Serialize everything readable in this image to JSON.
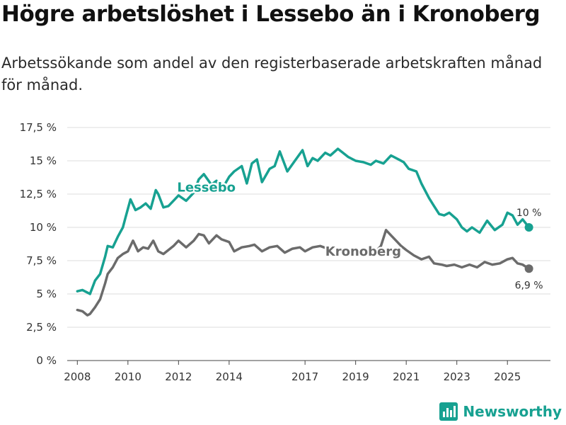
{
  "chart_data": {
    "type": "line",
    "title": "Högre arbetslöshet i Lessebo än i Kronoberg",
    "subtitle": "Arbetssökande som andel av den registerbaserade arbetskraften månad för månad.",
    "xlabel": "",
    "ylabel": "",
    "ylim": [
      0,
      17.5
    ],
    "xlim": [
      2007.6,
      2026.7
    ],
    "yticks": [
      0,
      2.5,
      5,
      7.5,
      10,
      12.5,
      15,
      17.5
    ],
    "ytick_labels": [
      "0 %",
      "2,5 %",
      "5 %",
      "7,5 %",
      "10 %",
      "12,5 %",
      "15 %",
      "17,5 %"
    ],
    "xticks": [
      2008,
      2010,
      2012,
      2014,
      2017,
      2019,
      2021,
      2023,
      2025
    ],
    "xtick_labels": [
      "2008",
      "2010",
      "2012",
      "2014",
      "2017",
      "2019",
      "2021",
      "2023",
      "2025"
    ],
    "grid": true,
    "series": [
      {
        "name": "Lessebo",
        "color": "#17a191",
        "end_label": "10 %",
        "x": [
          2008.0,
          2008.2,
          2008.4,
          2008.5,
          2008.7,
          2008.9,
          2009.1,
          2009.2,
          2009.4,
          2009.6,
          2009.8,
          2009.9,
          2010.1,
          2010.3,
          2010.5,
          2010.7,
          2010.9,
          2011.1,
          2011.2,
          2011.4,
          2011.6,
          2011.8,
          2012.0,
          2012.3,
          2012.6,
          2012.8,
          2013.0,
          2013.3,
          2013.5,
          2013.7,
          2014.0,
          2014.2,
          2014.5,
          2014.7,
          2014.9,
          2015.1,
          2015.3,
          2015.6,
          2015.8,
          2016.0,
          2016.3,
          2016.6,
          2016.9,
          2017.1,
          2017.3,
          2017.5,
          2017.8,
          2018.0,
          2018.3,
          2018.5,
          2018.7,
          2019.0,
          2019.3,
          2019.6,
          2019.8,
          2020.1,
          2020.4,
          2020.7,
          2020.9,
          2021.1,
          2021.4,
          2021.6,
          2021.9,
          2022.1,
          2022.3,
          2022.5,
          2022.7,
          2023.0,
          2023.2,
          2023.4,
          2023.6,
          2023.9,
          2024.2,
          2024.5,
          2024.8,
          2025.0,
          2025.2,
          2025.4,
          2025.6,
          2025.85
        ],
        "values": [
          5.2,
          5.3,
          5.1,
          5.0,
          6.0,
          6.5,
          7.8,
          8.6,
          8.5,
          9.3,
          10.0,
          10.7,
          12.1,
          11.3,
          11.5,
          11.8,
          11.4,
          12.8,
          12.5,
          11.5,
          11.6,
          12.0,
          12.4,
          12.0,
          12.6,
          13.6,
          14.0,
          13.2,
          13.5,
          12.8,
          13.8,
          14.2,
          14.6,
          13.3,
          14.8,
          15.1,
          13.4,
          14.4,
          14.6,
          15.7,
          14.2,
          15.0,
          15.8,
          14.6,
          15.2,
          15.0,
          15.6,
          15.4,
          15.9,
          15.6,
          15.3,
          15.0,
          14.9,
          14.7,
          15.0,
          14.8,
          15.4,
          15.1,
          14.9,
          14.4,
          14.2,
          13.3,
          12.2,
          11.6,
          11.0,
          10.9,
          11.1,
          10.6,
          10.0,
          9.7,
          10.0,
          9.6,
          10.5,
          9.8,
          10.2,
          11.1,
          10.9,
          10.2,
          10.6,
          10.0
        ]
      },
      {
        "name": "Kronoberg",
        "color": "#6b6b6b",
        "end_label": "6,9 %",
        "x": [
          2008.0,
          2008.2,
          2008.4,
          2008.5,
          2008.7,
          2008.9,
          2009.1,
          2009.2,
          2009.4,
          2009.6,
          2009.8,
          2010.0,
          2010.2,
          2010.4,
          2010.6,
          2010.8,
          2011.0,
          2011.2,
          2011.4,
          2011.6,
          2011.8,
          2012.0,
          2012.3,
          2012.6,
          2012.8,
          2013.0,
          2013.2,
          2013.5,
          2013.7,
          2014.0,
          2014.2,
          2014.5,
          2014.8,
          2015.0,
          2015.3,
          2015.6,
          2015.9,
          2016.2,
          2016.5,
          2016.8,
          2017.0,
          2017.3,
          2017.6,
          2017.9,
          2018.2,
          2018.5,
          2018.8,
          2019.1,
          2019.4,
          2019.7,
          2020.0,
          2020.2,
          2020.4,
          2020.6,
          2020.8,
          2021.0,
          2021.3,
          2021.6,
          2021.9,
          2022.1,
          2022.4,
          2022.6,
          2022.9,
          2023.2,
          2023.5,
          2023.8,
          2024.1,
          2024.4,
          2024.7,
          2025.0,
          2025.2,
          2025.4,
          2025.6,
          2025.85
        ],
        "values": [
          3.8,
          3.7,
          3.4,
          3.5,
          4.0,
          4.6,
          5.8,
          6.5,
          7.0,
          7.7,
          8.0,
          8.2,
          9.0,
          8.2,
          8.5,
          8.4,
          9.0,
          8.2,
          8.0,
          8.3,
          8.6,
          9.0,
          8.5,
          9.0,
          9.5,
          9.4,
          8.8,
          9.4,
          9.1,
          8.9,
          8.2,
          8.5,
          8.6,
          8.7,
          8.2,
          8.5,
          8.6,
          8.1,
          8.4,
          8.5,
          8.2,
          8.5,
          8.6,
          8.4,
          8.5,
          8.1,
          8.3,
          8.2,
          8.3,
          8.0,
          8.6,
          9.8,
          9.4,
          9.0,
          8.6,
          8.3,
          7.9,
          7.6,
          7.8,
          7.3,
          7.2,
          7.1,
          7.2,
          7.0,
          7.2,
          7.0,
          7.4,
          7.2,
          7.3,
          7.6,
          7.7,
          7.3,
          7.2,
          6.9
        ]
      }
    ]
  },
  "brand": {
    "name": "Newsworthy",
    "icon": "bar-chart-logo-icon",
    "color": "#17a191"
  }
}
